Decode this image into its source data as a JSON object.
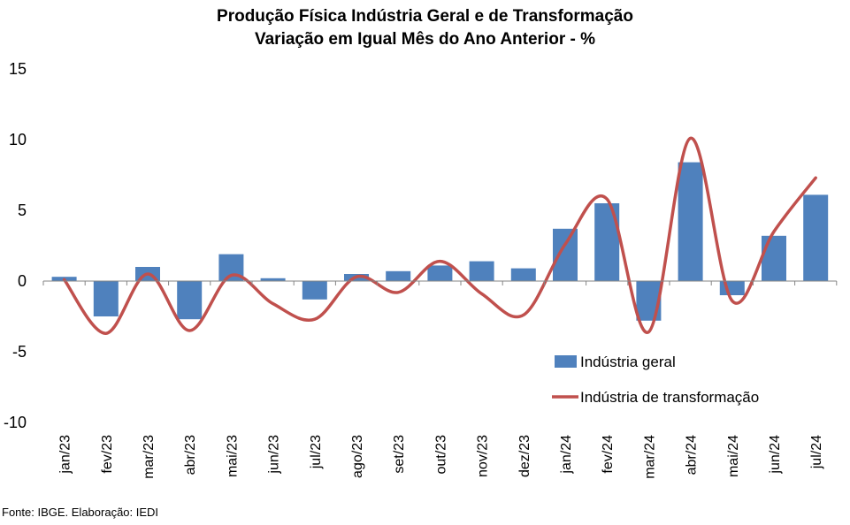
{
  "title_line1": "Produção Física Indústria Geral e de Transformação",
  "title_line2": "Variação em Igual Mês do Ano Anterior - %",
  "source": "Fonte: IBGE. Elaboração: IEDI",
  "colors": {
    "bar": "#4f81bd",
    "line": "#c0504d"
  },
  "chart_data": {
    "type": "bar",
    "title": "Produção Física Indústria Geral e de Transformação — Variação em Igual Mês do Ano Anterior - %",
    "categories": [
      "jan/23",
      "fev/23",
      "mar/23",
      "abr/23",
      "mai/23",
      "jun/23",
      "jul/23",
      "ago/23",
      "set/23",
      "out/23",
      "nov/23",
      "dez/23",
      "jan/24",
      "fev/24",
      "mar/24",
      "abr/24",
      "mai/24",
      "jun/24",
      "jul/24"
    ],
    "ylim": [
      -10,
      15
    ],
    "yticks": [
      -10,
      -5,
      0,
      5,
      10,
      15
    ],
    "grid": false,
    "legend_position": "bottom-right",
    "series": [
      {
        "name": "Indústria geral",
        "type": "bar",
        "values": [
          0.3,
          -2.5,
          1.0,
          -2.7,
          1.9,
          0.2,
          -1.3,
          0.5,
          0.7,
          1.1,
          1.4,
          0.9,
          3.7,
          5.5,
          -2.8,
          8.4,
          -1.0,
          3.2,
          6.1
        ]
      },
      {
        "name": "Indústria de transformação",
        "type": "line",
        "values": [
          0.1,
          -3.7,
          0.5,
          -3.5,
          0.4,
          -1.6,
          -2.7,
          0.3,
          -0.8,
          1.4,
          -0.9,
          -2.4,
          2.6,
          5.8,
          -3.6,
          10.1,
          -1.4,
          3.5,
          7.3
        ]
      }
    ]
  }
}
